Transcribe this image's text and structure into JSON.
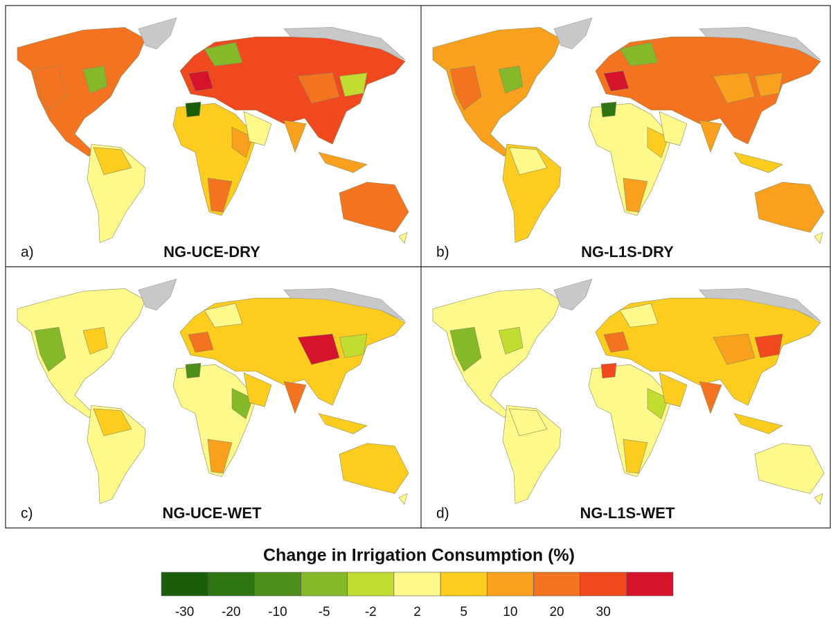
{
  "panels": [
    {
      "label": "a)",
      "title": "NG-UCE-DRY"
    },
    {
      "label": "b)",
      "title": "NG-L1S-DRY"
    },
    {
      "label": "c)",
      "title": "NG-UCE-WET"
    },
    {
      "label": "d)",
      "title": "NG-L1S-WET"
    }
  ],
  "legend": {
    "title": "Change in Irrigation Consumption (%)",
    "colors": [
      "#1a5e0a",
      "#2e7614",
      "#4e8f1c",
      "#86b92a",
      "#c2dc32",
      "#fdf98a",
      "#fccc1f",
      "#f9a01e",
      "#f47320",
      "#f0481f",
      "#d5132b"
    ],
    "ticks": [
      -30,
      -20,
      -10,
      -5,
      -2,
      2,
      5,
      10,
      20,
      30
    ]
  }
}
